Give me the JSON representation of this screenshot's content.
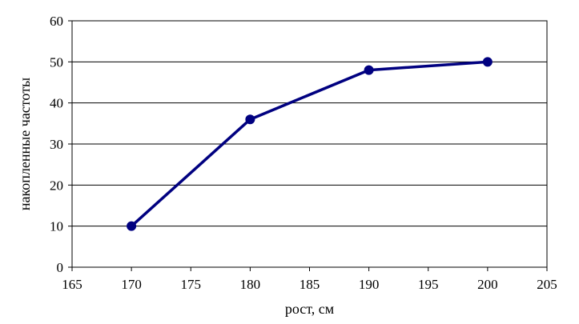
{
  "chart_data": {
    "type": "line",
    "title": "",
    "xlabel": "рост, см",
    "ylabel": "накопленные частоты",
    "xlim": [
      165,
      205
    ],
    "ylim": [
      0,
      60
    ],
    "x_ticks": [
      165,
      170,
      175,
      180,
      185,
      190,
      195,
      200,
      205
    ],
    "y_ticks": [
      0,
      10,
      20,
      30,
      40,
      50,
      60
    ],
    "grid": "horizontal",
    "legend": "none",
    "series": [
      {
        "x": [
          170,
          180,
          190,
          200
        ],
        "y": [
          10,
          36,
          48,
          50
        ],
        "color": "#000080",
        "marker": "circle"
      }
    ]
  }
}
